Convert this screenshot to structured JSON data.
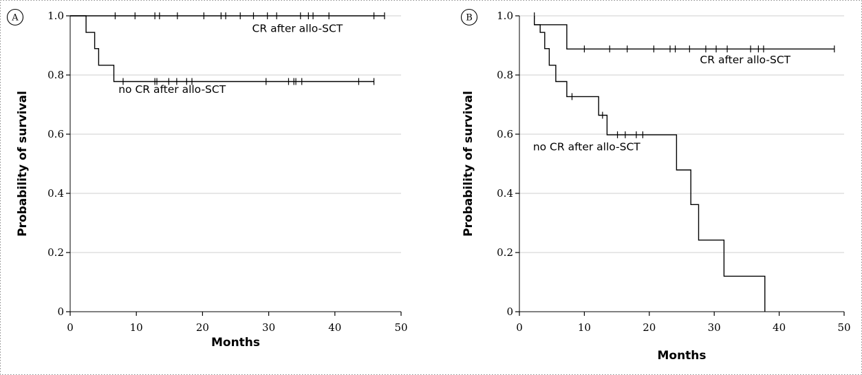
{
  "chart_data": [
    {
      "type": "line",
      "panel_label": "A",
      "xlabel": "Months",
      "ylabel": "Probability of survival",
      "xlim": [
        0,
        50
      ],
      "ylim": [
        0,
        1
      ],
      "x_ticks": [
        0,
        10,
        20,
        30,
        40,
        50
      ],
      "y_ticks": [
        0,
        0.2,
        0.4,
        0.6,
        0.8,
        1.0
      ],
      "x_tick_labels": [
        "0",
        "10",
        "20",
        "30",
        "40",
        "50"
      ],
      "y_tick_labels": [
        "0",
        "0.2",
        "0.4",
        "0.6",
        "0.8",
        "1.0"
      ],
      "grid": "horizontal",
      "series": [
        {
          "name": "CR after allo-SCT",
          "steps": [
            [
              0,
              1.0
            ],
            [
              47.5,
              1.0
            ]
          ],
          "censored": [
            [
              6.8,
              1.0
            ],
            [
              9.8,
              1.0
            ],
            [
              12.8,
              1.0
            ],
            [
              13.5,
              1.0
            ],
            [
              16.2,
              1.0
            ],
            [
              20.2,
              1.0
            ],
            [
              22.8,
              1.0
            ],
            [
              23.5,
              1.0
            ],
            [
              25.7,
              1.0
            ],
            [
              27.7,
              1.0
            ],
            [
              29.8,
              1.0
            ],
            [
              31.2,
              1.0
            ],
            [
              34.8,
              1.0
            ],
            [
              36.0,
              1.0
            ],
            [
              36.7,
              1.0
            ],
            [
              39.1,
              1.0
            ],
            [
              45.9,
              1.0
            ],
            [
              47.5,
              1.0
            ]
          ]
        },
        {
          "name": "no CR after allo-SCT",
          "steps": [
            [
              0,
              1.0
            ],
            [
              2.4,
              1.0
            ],
            [
              2.4,
              0.944
            ],
            [
              3.7,
              0.944
            ],
            [
              3.7,
              0.889
            ],
            [
              4.3,
              0.889
            ],
            [
              4.3,
              0.833
            ],
            [
              6.6,
              0.833
            ],
            [
              6.6,
              0.778
            ],
            [
              45.9,
              0.778
            ]
          ],
          "censored": [
            [
              8.0,
              0.778
            ],
            [
              12.8,
              0.778
            ],
            [
              13.1,
              0.778
            ],
            [
              14.9,
              0.778
            ],
            [
              16.1,
              0.778
            ],
            [
              17.6,
              0.778
            ],
            [
              18.4,
              0.778
            ],
            [
              29.6,
              0.778
            ],
            [
              33.0,
              0.778
            ],
            [
              33.8,
              0.778
            ],
            [
              34.1,
              0.778
            ],
            [
              35.0,
              0.778
            ],
            [
              43.6,
              0.778
            ],
            [
              45.9,
              0.778
            ]
          ]
        }
      ],
      "annotations": [
        {
          "text": "CR after allo-SCT",
          "x": 27.5,
          "y": 0.945
        },
        {
          "text": "no CR after allo-SCT",
          "x": 7.3,
          "y": 0.74
        }
      ]
    },
    {
      "type": "line",
      "panel_label": "B",
      "xlabel": "Months",
      "ylabel": "Probability of survival",
      "xlim": [
        0,
        50
      ],
      "ylim": [
        0,
        1
      ],
      "x_ticks": [
        0,
        10,
        20,
        30,
        40,
        50
      ],
      "y_ticks": [
        0,
        0.2,
        0.4,
        0.6,
        0.8,
        1.0
      ],
      "x_tick_labels": [
        "0",
        "10",
        "20",
        "30",
        "40",
        "50"
      ],
      "y_tick_labels": [
        "0",
        "0.2",
        "0.4",
        "0.6",
        "0.8",
        "1.0"
      ],
      "grid": "horizontal",
      "series": [
        {
          "name": "CR after allo-SCT",
          "steps": [
            [
              2.3,
              1.0
            ],
            [
              2.3,
              0.97
            ],
            [
              7.3,
              0.97
            ],
            [
              7.3,
              0.888
            ],
            [
              48.5,
              0.888
            ]
          ],
          "censored": [
            [
              2.3,
              1.0
            ],
            [
              10.0,
              0.888
            ],
            [
              13.9,
              0.888
            ],
            [
              16.6,
              0.888
            ],
            [
              20.7,
              0.888
            ],
            [
              23.2,
              0.888
            ],
            [
              24.0,
              0.888
            ],
            [
              26.2,
              0.888
            ],
            [
              28.7,
              0.888
            ],
            [
              30.3,
              0.888
            ],
            [
              32.0,
              0.888
            ],
            [
              35.6,
              0.888
            ],
            [
              36.8,
              0.888
            ],
            [
              37.6,
              0.888
            ],
            [
              48.5,
              0.888
            ]
          ]
        },
        {
          "name": "no CR after allo-SCT",
          "steps": [
            [
              2.3,
              0.97
            ],
            [
              3.2,
              0.97
            ],
            [
              3.2,
              0.944
            ],
            [
              3.9,
              0.944
            ],
            [
              3.9,
              0.889
            ],
            [
              4.6,
              0.889
            ],
            [
              4.6,
              0.833
            ],
            [
              5.6,
              0.833
            ],
            [
              5.6,
              0.778
            ],
            [
              7.3,
              0.778
            ],
            [
              7.3,
              0.727
            ],
            [
              12.2,
              0.727
            ],
            [
              12.2,
              0.664
            ],
            [
              13.5,
              0.664
            ],
            [
              13.5,
              0.598
            ],
            [
              24.2,
              0.598
            ],
            [
              24.2,
              0.479
            ],
            [
              26.4,
              0.479
            ],
            [
              26.4,
              0.362
            ],
            [
              27.6,
              0.362
            ],
            [
              27.6,
              0.242
            ],
            [
              31.5,
              0.242
            ],
            [
              31.5,
              0.12
            ],
            [
              37.8,
              0.12
            ],
            [
              37.8,
              0.0
            ]
          ],
          "censored": [
            [
              8.1,
              0.727
            ],
            [
              12.8,
              0.664
            ],
            [
              15.1,
              0.598
            ],
            [
              16.3,
              0.598
            ],
            [
              18.0,
              0.598
            ],
            [
              19.0,
              0.598
            ]
          ]
        }
      ],
      "annotations": [
        {
          "text": "CR after allo-SCT",
          "x": 27.8,
          "y": 0.84
        },
        {
          "text": "no CR after allo-SCT",
          "x": 2.1,
          "y": 0.545
        }
      ]
    }
  ]
}
